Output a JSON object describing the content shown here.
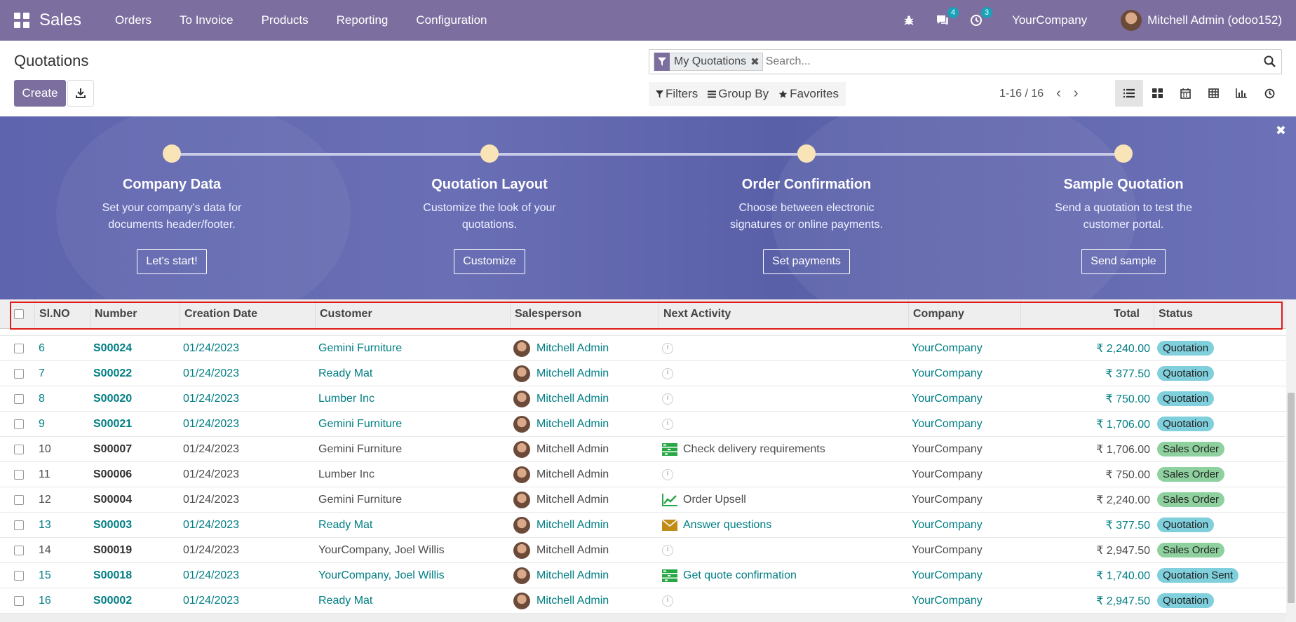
{
  "app": {
    "title": "Sales"
  },
  "nav": {
    "menu": [
      "Orders",
      "To Invoice",
      "Products",
      "Reporting",
      "Configuration"
    ],
    "chat_badge": "4",
    "activity_badge": "3",
    "company": "YourCompany",
    "user": "Mitchell Admin (odoo152)"
  },
  "control": {
    "title": "Quotations",
    "create_label": "Create",
    "facet_label": "My Quotations",
    "search_placeholder": "Search...",
    "filters_label": "Filters",
    "groupby_label": "Group By",
    "favorites_label": "Favorites",
    "pager": "1-16 / 16"
  },
  "banner": {
    "steps": [
      {
        "title": "Company Data",
        "desc1": "Set your company's data for",
        "desc2": "documents header/footer.",
        "button": "Let's start!"
      },
      {
        "title": "Quotation Layout",
        "desc1": "Customize the look of your",
        "desc2": "quotations.",
        "button": "Customize"
      },
      {
        "title": "Order Confirmation",
        "desc1": "Choose between electronic",
        "desc2": "signatures or online payments.",
        "button": "Set payments"
      },
      {
        "title": "Sample Quotation",
        "desc1": "Send a quotation to test the",
        "desc2": "customer portal.",
        "button": "Send sample"
      }
    ]
  },
  "table": {
    "headers": [
      "Sl.NO",
      "Number",
      "Creation Date",
      "Customer",
      "Salesperson",
      "Next Activity",
      "Company",
      "Total",
      "Status"
    ],
    "rows": [
      {
        "sl": "6",
        "number": "S00024",
        "date": "01/24/2023",
        "customer": "Gemini Furniture",
        "salesperson": "Mitchell Admin",
        "activity": "",
        "activity_icon": "clock-icon",
        "company": "YourCompany",
        "total": "₹ 2,240.00",
        "status": "Quotation",
        "style": "link"
      },
      {
        "sl": "7",
        "number": "S00022",
        "date": "01/24/2023",
        "customer": "Ready Mat",
        "salesperson": "Mitchell Admin",
        "activity": "",
        "activity_icon": "clock-icon",
        "company": "YourCompany",
        "total": "₹ 377.50",
        "status": "Quotation",
        "style": "link"
      },
      {
        "sl": "8",
        "number": "S00020",
        "date": "01/24/2023",
        "customer": "Lumber Inc",
        "salesperson": "Mitchell Admin",
        "activity": "",
        "activity_icon": "clock-icon",
        "company": "YourCompany",
        "total": "₹ 750.00",
        "status": "Quotation",
        "style": "link"
      },
      {
        "sl": "9",
        "number": "S00021",
        "date": "01/24/2023",
        "customer": "Gemini Furniture",
        "salesperson": "Mitchell Admin",
        "activity": "",
        "activity_icon": "clock-icon",
        "company": "YourCompany",
        "total": "₹ 1,706.00",
        "status": "Quotation",
        "style": "link"
      },
      {
        "sl": "10",
        "number": "S00007",
        "date": "01/24/2023",
        "customer": "Gemini Furniture",
        "salesperson": "Mitchell Admin",
        "activity": "Check delivery requirements",
        "activity_icon": "tasks-icon",
        "company": "YourCompany",
        "total": "₹ 1,706.00",
        "status": "Sales Order",
        "style": "plain"
      },
      {
        "sl": "11",
        "number": "S00006",
        "date": "01/24/2023",
        "customer": "Lumber Inc",
        "salesperson": "Mitchell Admin",
        "activity": "",
        "activity_icon": "clock-icon",
        "company": "YourCompany",
        "total": "₹ 750.00",
        "status": "Sales Order",
        "style": "plain"
      },
      {
        "sl": "12",
        "number": "S00004",
        "date": "01/24/2023",
        "customer": "Gemini Furniture",
        "salesperson": "Mitchell Admin",
        "activity": "Order Upsell",
        "activity_icon": "chart-line-icon",
        "company": "YourCompany",
        "total": "₹ 2,240.00",
        "status": "Sales Order",
        "style": "plain"
      },
      {
        "sl": "13",
        "number": "S00003",
        "date": "01/24/2023",
        "customer": "Ready Mat",
        "salesperson": "Mitchell Admin",
        "activity": "Answer questions",
        "activity_icon": "envelope-icon",
        "company": "YourCompany",
        "total": "₹ 377.50",
        "status": "Quotation",
        "style": "link"
      },
      {
        "sl": "14",
        "number": "S00019",
        "date": "01/24/2023",
        "customer": "YourCompany, Joel Willis",
        "salesperson": "Mitchell Admin",
        "activity": "",
        "activity_icon": "clock-icon",
        "company": "YourCompany",
        "total": "₹ 2,947.50",
        "status": "Sales Order",
        "style": "plain"
      },
      {
        "sl": "15",
        "number": "S00018",
        "date": "01/24/2023",
        "customer": "YourCompany, Joel Willis",
        "salesperson": "Mitchell Admin",
        "activity": "Get quote confirmation",
        "activity_icon": "tasks-icon",
        "company": "YourCompany",
        "total": "₹ 1,740.00",
        "status": "Quotation Sent",
        "style": "link"
      },
      {
        "sl": "16",
        "number": "S00002",
        "date": "01/24/2023",
        "customer": "Ready Mat",
        "salesperson": "Mitchell Admin",
        "activity": "",
        "activity_icon": "clock-icon",
        "company": "YourCompany",
        "total": "₹ 2,947.50",
        "status": "Quotation",
        "style": "link"
      }
    ]
  },
  "colors": {
    "brand": "#7c6f9f",
    "link": "#017e84",
    "highlight": "#e01b1b"
  }
}
